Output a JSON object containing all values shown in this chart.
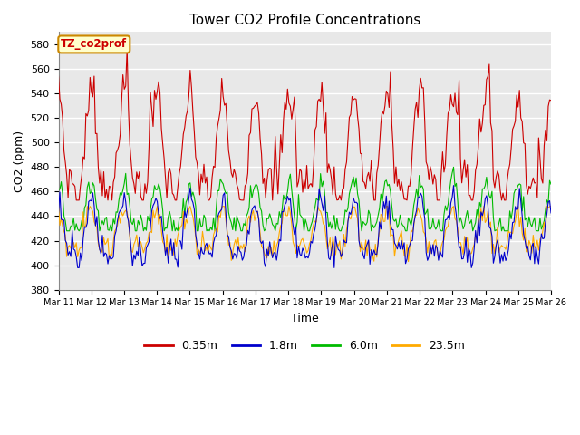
{
  "title": "Tower CO2 Profile Concentrations",
  "xlabel": "Time",
  "ylabel": "CO2 (ppm)",
  "ylim": [
    380,
    590
  ],
  "yticks": [
    380,
    400,
    420,
    440,
    460,
    480,
    500,
    520,
    540,
    560,
    580
  ],
  "legend_label": "TZ_co2prof",
  "series_labels": [
    "0.35m",
    "1.8m",
    "6.0m",
    "23.5m"
  ],
  "series_colors": [
    "#cc0000",
    "#0000cc",
    "#00bb00",
    "#ffaa00"
  ],
  "plot_bg": "#e8e8e8",
  "xtick_labels": [
    "Mar 11",
    "Mar 12",
    "Mar 13",
    "Mar 14",
    "Mar 15",
    "Mar 16",
    "Mar 17",
    "Mar 18",
    "Mar 19",
    "Mar 20",
    "Mar 21",
    "Mar 22",
    "Mar 23",
    "Mar 24",
    "Mar 25",
    "Mar 26"
  ],
  "figsize": [
    6.4,
    4.8
  ],
  "dpi": 100
}
